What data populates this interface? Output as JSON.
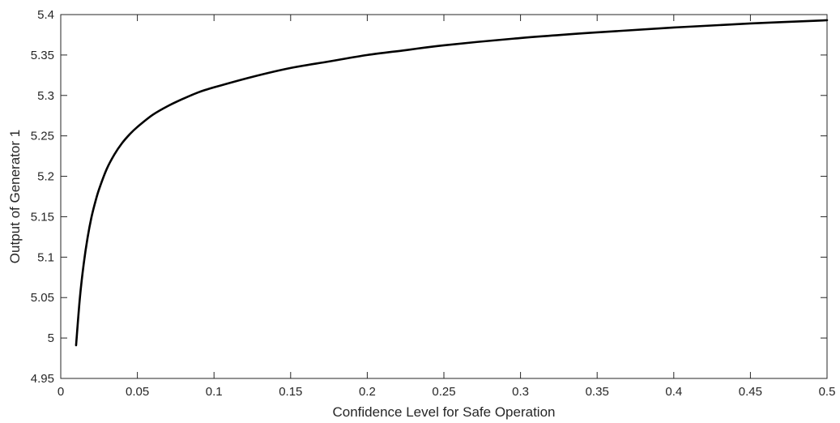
{
  "chart_data": {
    "type": "line",
    "title": "",
    "xlabel": "Confidence Level for Safe Operation",
    "ylabel": "Output of Generator 1",
    "xlim": [
      0,
      0.5
    ],
    "ylim": [
      4.95,
      5.4
    ],
    "x_ticks": [
      "0",
      "0.05",
      "0.1",
      "0.15",
      "0.2",
      "0.25",
      "0.3",
      "0.35",
      "0.4",
      "0.45",
      "0.5"
    ],
    "y_ticks": [
      "4.95",
      "5",
      "5.05",
      "5.1",
      "5.15",
      "5.2",
      "5.25",
      "5.3",
      "5.35",
      "5.4"
    ],
    "grid": false,
    "legend": "none",
    "line_color": "#000000",
    "series": [
      {
        "x": [
          0.01,
          0.0125,
          0.015,
          0.0175,
          0.02,
          0.0225,
          0.025,
          0.03,
          0.035,
          0.04,
          0.045,
          0.05,
          0.06,
          0.07,
          0.08,
          0.09,
          0.1,
          0.125,
          0.15,
          0.175,
          0.2,
          0.225,
          0.25,
          0.3,
          0.35,
          0.4,
          0.45,
          0.5
        ],
        "y": [
          4.991,
          5.05,
          5.092,
          5.124,
          5.149,
          5.168,
          5.184,
          5.209,
          5.227,
          5.241,
          5.252,
          5.261,
          5.276,
          5.287,
          5.296,
          5.304,
          5.31,
          5.323,
          5.334,
          5.342,
          5.35,
          5.356,
          5.362,
          5.371,
          5.378,
          5.384,
          5.389,
          5.393
        ]
      }
    ]
  }
}
